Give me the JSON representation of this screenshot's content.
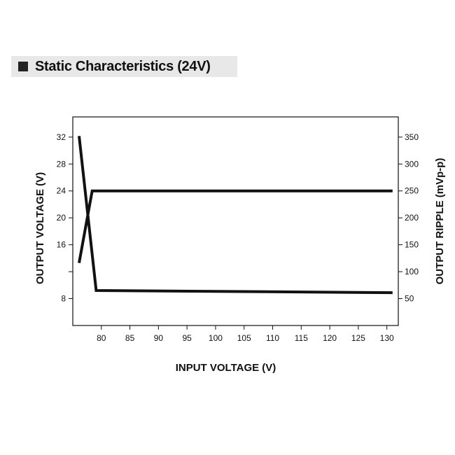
{
  "header": {
    "title": "Static Characteristics (24V)",
    "bullet_icon": "square-bullet-icon"
  },
  "chart_data": {
    "type": "line",
    "title": "Static Characteristics (24V)",
    "xlabel": "INPUT VOLTAGE (V)",
    "ylabel_left": "OUTPUT VOLTAGE (V)",
    "ylabel_right": "OUTPUT RIPPLE (mVp-p)",
    "xlim": [
      75,
      132
    ],
    "ylim_left": [
      4,
      35
    ],
    "ylim_right": [
      0,
      387.5
    ],
    "x_ticks": [
      80,
      85,
      90,
      95,
      100,
      105,
      110,
      115,
      120,
      125,
      130
    ],
    "y_ticks_left": [
      8,
      12,
      16,
      20,
      24,
      28,
      32
    ],
    "y_tick_labels_left": [
      "8",
      "",
      "16",
      "20",
      "24",
      "28",
      "32"
    ],
    "y_ticks_right": [
      50,
      100,
      150,
      200,
      250,
      300,
      350
    ],
    "grid": false,
    "color": "#111111",
    "series": [
      {
        "name": "Output Voltage",
        "axis": "left",
        "x": [
          76.1,
          78.4,
          79.2,
          131
        ],
        "y": [
          13.3,
          24.0,
          24.0,
          24.0
        ]
      },
      {
        "name": "Output Ripple",
        "axis": "right",
        "x": [
          76.1,
          79.1,
          131
        ],
        "y": [
          352,
          65,
          61
        ]
      }
    ]
  }
}
